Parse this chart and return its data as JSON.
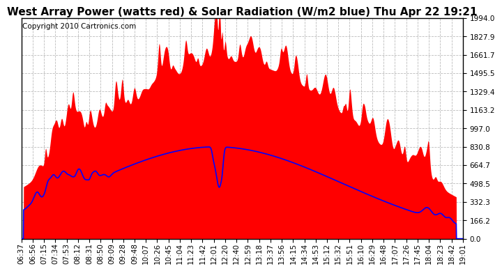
{
  "title": "West Array Power (watts red) & Solar Radiation (W/m2 blue) Thu Apr 22 19:21",
  "copyright": "Copyright 2010 Cartronics.com",
  "yticks": [
    0.0,
    166.2,
    332.3,
    498.5,
    664.7,
    830.8,
    997.0,
    1163.2,
    1329.4,
    1495.5,
    1661.7,
    1827.9,
    1994.0
  ],
  "ymax": 1994.0,
  "ymin": 0.0,
  "xtick_labels": [
    "06:37",
    "06:56",
    "07:15",
    "07:34",
    "07:53",
    "08:12",
    "08:31",
    "08:50",
    "09:09",
    "09:28",
    "09:48",
    "10:07",
    "10:26",
    "10:45",
    "11:04",
    "11:23",
    "11:42",
    "12:01",
    "12:20",
    "12:40",
    "12:59",
    "13:18",
    "13:37",
    "13:56",
    "14:15",
    "14:34",
    "14:53",
    "15:12",
    "15:32",
    "15:51",
    "16:10",
    "16:29",
    "16:48",
    "17:07",
    "17:26",
    "17:45",
    "18:04",
    "18:23",
    "18:42",
    "19:01"
  ],
  "fill_color": "#FF0000",
  "line_color": "#0000FF",
  "background_color": "#FFFFFF",
  "grid_color": "#BBBBBB",
  "title_fontsize": 11,
  "copyright_fontsize": 7.5,
  "tick_fontsize": 7.5
}
